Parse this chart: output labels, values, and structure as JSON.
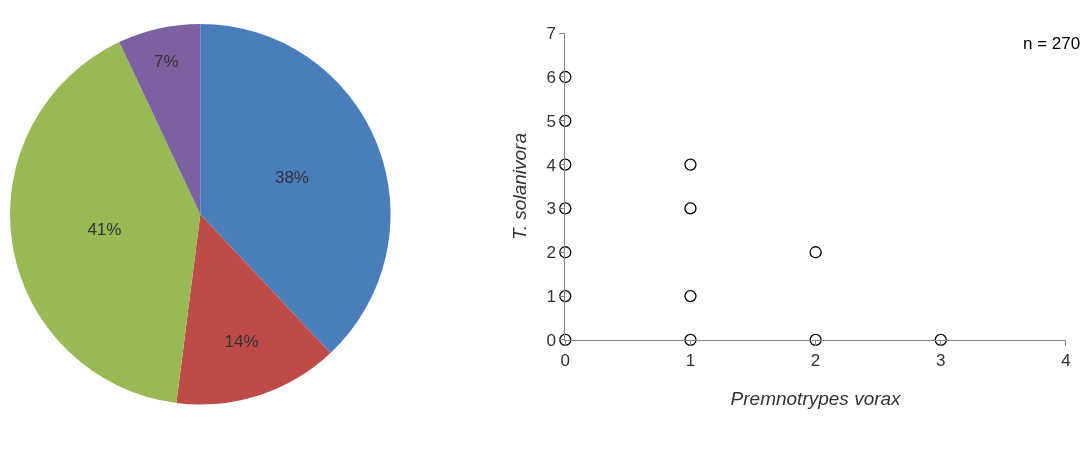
{
  "chart_data": [
    {
      "type": "pie",
      "categories": [
        null,
        null,
        null,
        null
      ],
      "values": [
        38,
        14,
        41,
        7
      ],
      "colors": [
        "#4a7ebb",
        "#be4b48",
        "#98b954",
        "#7d60a0"
      ],
      "value_labels": [
        "38%",
        "14%",
        "41%",
        "7%"
      ]
    },
    {
      "type": "scatter",
      "xlabel": "Premnotrypes vorax",
      "ylabel": "T. solanivora",
      "annotations": [
        "n = 270"
      ],
      "x": [
        0,
        0,
        0,
        0,
        0,
        0,
        0,
        1,
        1,
        1,
        1,
        2,
        2,
        3
      ],
      "values": [
        0,
        1,
        2,
        3,
        4,
        5,
        6,
        0,
        1,
        3,
        4,
        0,
        2,
        0
      ],
      "color": "#000000",
      "marker": "circle",
      "xlim": [
        0,
        4
      ],
      "ylim": [
        0,
        7
      ],
      "xticks": [
        0,
        1,
        2,
        3,
        4
      ],
      "yticks": [
        0,
        1,
        2,
        3,
        4,
        5,
        6,
        7
      ]
    }
  ]
}
